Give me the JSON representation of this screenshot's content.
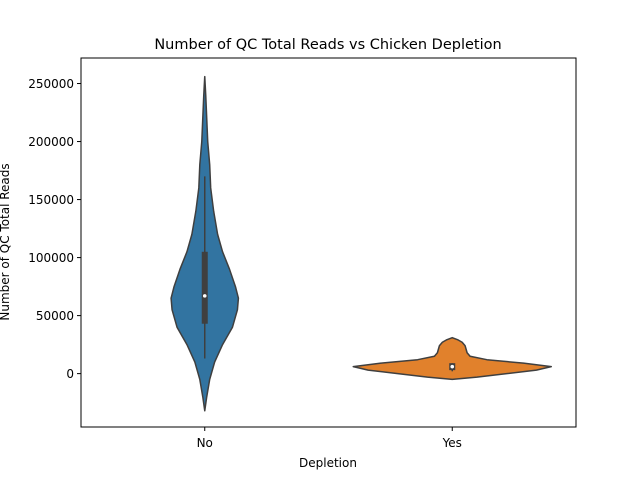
{
  "chart_data": {
    "type": "violin",
    "title": "Number of QC Total Reads vs Chicken Depletion",
    "xlabel": "Depletion",
    "ylabel": "Number of QC Total Reads",
    "categories": [
      "No",
      "Yes"
    ],
    "ylim": [
      -46000,
      272000
    ],
    "yticks": [
      0,
      50000,
      100000,
      150000,
      200000,
      250000
    ],
    "ytick_labels": [
      "0",
      "50000",
      "100000",
      "150000",
      "200000",
      "250000"
    ],
    "grid": false,
    "series": [
      {
        "category": "No",
        "color": "#3274a1",
        "range": [
          -32000,
          256000
        ],
        "quartiles": [
          43000,
          105000
        ],
        "median": 67000,
        "whiskers": [
          13000,
          170000
        ],
        "density_profile": [
          [
            -32000,
            0.0
          ],
          [
            -20000,
            0.02
          ],
          [
            -5000,
            0.05
          ],
          [
            10000,
            0.1
          ],
          [
            25000,
            0.18
          ],
          [
            40000,
            0.28
          ],
          [
            55000,
            0.33
          ],
          [
            65000,
            0.34
          ],
          [
            75000,
            0.31
          ],
          [
            90000,
            0.25
          ],
          [
            105000,
            0.18
          ],
          [
            120000,
            0.13
          ],
          [
            140000,
            0.09
          ],
          [
            160000,
            0.06
          ],
          [
            180000,
            0.05
          ],
          [
            200000,
            0.03
          ],
          [
            220000,
            0.02
          ],
          [
            240000,
            0.01
          ],
          [
            256000,
            0.0
          ]
        ]
      },
      {
        "category": "Yes",
        "color": "#e1812c",
        "range": [
          -5000,
          31000
        ],
        "quartiles": [
          3000,
          9000
        ],
        "median": 6000,
        "whiskers": [
          2000,
          9000
        ],
        "density_profile": [
          [
            -5000,
            0.0
          ],
          [
            -3000,
            0.25
          ],
          [
            0,
            0.55
          ],
          [
            3000,
            0.85
          ],
          [
            6000,
            1.0
          ],
          [
            9000,
            0.72
          ],
          [
            12000,
            0.35
          ],
          [
            15000,
            0.18
          ],
          [
            18000,
            0.15
          ],
          [
            21000,
            0.14
          ],
          [
            24000,
            0.13
          ],
          [
            27000,
            0.1
          ],
          [
            29000,
            0.06
          ],
          [
            31000,
            0.0
          ]
        ]
      }
    ]
  }
}
